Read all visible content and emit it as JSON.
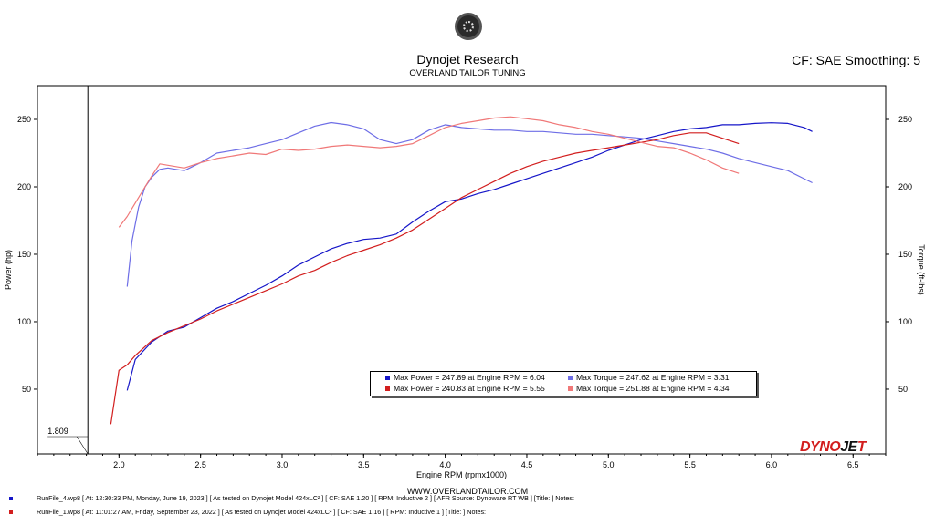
{
  "header": {
    "title": "Dynojet Research",
    "subtitle": "OVERLAND TAILOR TUNING",
    "cf_info": "CF: SAE Smoothing: 5"
  },
  "footer": {
    "website": "WWW.OVERLANDTAILOR.COM",
    "runs": [
      {
        "color": "#1515c8",
        "text": "RunFile_4.wp8  [ At:  12:30:33 PM, Monday, June 19, 2023 ] [ As tested on Dynojet Model 424xLC² ] [ CF: SAE 1.20 ] [ RPM: Inductive 2 ] [ AFR Source: Dynoware RT WB ] [Title: ]  Notes:"
      },
      {
        "color": "#d21e1e",
        "text": "RunFile_1.wp8  [ At:  11:01:27 AM, Friday, September 23, 2022 ] [ As tested on Dynojet Model 424xLC² ] [ CF: SAE 1.16 ] [ RPM: Inductive 1 ] [Title: ]  Notes:"
      }
    ]
  },
  "logo": {
    "part1": "DYNO",
    "part2": "JE",
    "part3": "T"
  },
  "chart_data": {
    "type": "line",
    "xlabel": "Engine RPM (rpmx1000)",
    "ylabel_left": "Power (hp)",
    "ylabel_right": "Torque (ft-lbs)",
    "xlim": [
      1.5,
      6.7
    ],
    "ylim": [
      2,
      275
    ],
    "xticks": [
      2.0,
      2.5,
      3.0,
      3.5,
      4.0,
      4.5,
      5.0,
      5.5,
      6.0,
      6.5
    ],
    "yticks": [
      50,
      100,
      150,
      200,
      250
    ],
    "cursor": {
      "x": 1.809,
      "label": "1.809"
    },
    "legend": [
      {
        "color": "#1515c8",
        "text": "Max Power = 247.89 at Engine RPM = 6.04"
      },
      {
        "color": "#6e6ee6",
        "text": "Max Torque = 247.62 at Engine RPM = 3.31"
      },
      {
        "color": "#d21e1e",
        "text": "Max Power = 240.83 at Engine RPM = 5.55"
      },
      {
        "color": "#f07878",
        "text": "Max Torque = 251.88 at Engine RPM = 4.34"
      }
    ],
    "series": [
      {
        "kind": "power",
        "color": "#1515c8",
        "x": [
          2.05,
          2.1,
          2.2,
          2.3,
          2.4,
          2.5,
          2.6,
          2.7,
          2.8,
          2.9,
          3.0,
          3.1,
          3.2,
          3.3,
          3.4,
          3.5,
          3.6,
          3.7,
          3.8,
          3.9,
          4.0,
          4.1,
          4.2,
          4.3,
          4.4,
          4.5,
          4.6,
          4.7,
          4.8,
          4.9,
          5.0,
          5.1,
          5.2,
          5.3,
          5.4,
          5.5,
          5.6,
          5.7,
          5.8,
          5.9,
          6.0,
          6.1,
          6.2,
          6.25
        ],
        "y": [
          49,
          72,
          85,
          93,
          96,
          103,
          110,
          115,
          121,
          127,
          134,
          142,
          148,
          154,
          158,
          161,
          162,
          165,
          174,
          182,
          189,
          191,
          195,
          198,
          202,
          206,
          210,
          214,
          218,
          222,
          227,
          231,
          235,
          238,
          241,
          243,
          244,
          246,
          246,
          247,
          247.5,
          247,
          244,
          241
        ]
      },
      {
        "kind": "torque",
        "color": "#6e6ee6",
        "x": [
          2.05,
          2.08,
          2.12,
          2.16,
          2.2,
          2.25,
          2.3,
          2.35,
          2.4,
          2.5,
          2.6,
          2.7,
          2.8,
          2.9,
          3.0,
          3.1,
          3.2,
          3.3,
          3.4,
          3.5,
          3.6,
          3.7,
          3.8,
          3.9,
          4.0,
          4.1,
          4.2,
          4.3,
          4.4,
          4.5,
          4.6,
          4.7,
          4.8,
          4.9,
          5.0,
          5.1,
          5.2,
          5.3,
          5.4,
          5.5,
          5.6,
          5.7,
          5.8,
          5.9,
          6.0,
          6.1,
          6.2,
          6.25
        ],
        "y": [
          126,
          160,
          185,
          200,
          207,
          213,
          214,
          213,
          212,
          218,
          225,
          227,
          229,
          232,
          235,
          240,
          245,
          247.6,
          246,
          243,
          235,
          232,
          235,
          242,
          246,
          244,
          243,
          242,
          242,
          241,
          241,
          240,
          239,
          239,
          238,
          237,
          236,
          234,
          232,
          230,
          228,
          225,
          221,
          218,
          215,
          212,
          206,
          203
        ]
      },
      {
        "kind": "power",
        "color": "#d21e1e",
        "x": [
          1.95,
          2.0,
          2.05,
          2.1,
          2.2,
          2.3,
          2.4,
          2.5,
          2.6,
          2.7,
          2.8,
          2.9,
          3.0,
          3.1,
          3.2,
          3.3,
          3.4,
          3.5,
          3.6,
          3.7,
          3.8,
          3.9,
          4.0,
          4.1,
          4.2,
          4.3,
          4.4,
          4.5,
          4.6,
          4.7,
          4.8,
          4.9,
          5.0,
          5.1,
          5.2,
          5.3,
          5.4,
          5.5,
          5.6,
          5.7,
          5.8
        ],
        "y": [
          24,
          64,
          68,
          75,
          86,
          92,
          97,
          102,
          108,
          113,
          118,
          123,
          128,
          134,
          138,
          144,
          149,
          153,
          157,
          162,
          168,
          176,
          184,
          192,
          198,
          204,
          210,
          215,
          219,
          222,
          225,
          227,
          229,
          231,
          233,
          235,
          238,
          240,
          240,
          236,
          232
        ]
      },
      {
        "kind": "torque",
        "color": "#f07878",
        "x": [
          2.0,
          2.05,
          2.1,
          2.15,
          2.2,
          2.25,
          2.3,
          2.4,
          2.5,
          2.6,
          2.7,
          2.8,
          2.9,
          3.0,
          3.1,
          3.2,
          3.3,
          3.4,
          3.5,
          3.6,
          3.7,
          3.8,
          3.9,
          4.0,
          4.1,
          4.2,
          4.3,
          4.4,
          4.5,
          4.6,
          4.7,
          4.8,
          4.9,
          5.0,
          5.1,
          5.2,
          5.3,
          5.4,
          5.5,
          5.6,
          5.7,
          5.8
        ],
        "y": [
          170,
          178,
          188,
          198,
          208,
          217,
          216,
          214,
          218,
          221,
          223,
          225,
          224,
          228,
          227,
          228,
          230,
          231,
          230,
          229,
          230,
          232,
          238,
          244,
          247,
          249,
          251,
          251.9,
          250.5,
          249,
          246,
          244,
          241,
          239,
          236,
          233,
          230,
          229,
          225,
          220,
          214,
          210
        ]
      }
    ]
  }
}
